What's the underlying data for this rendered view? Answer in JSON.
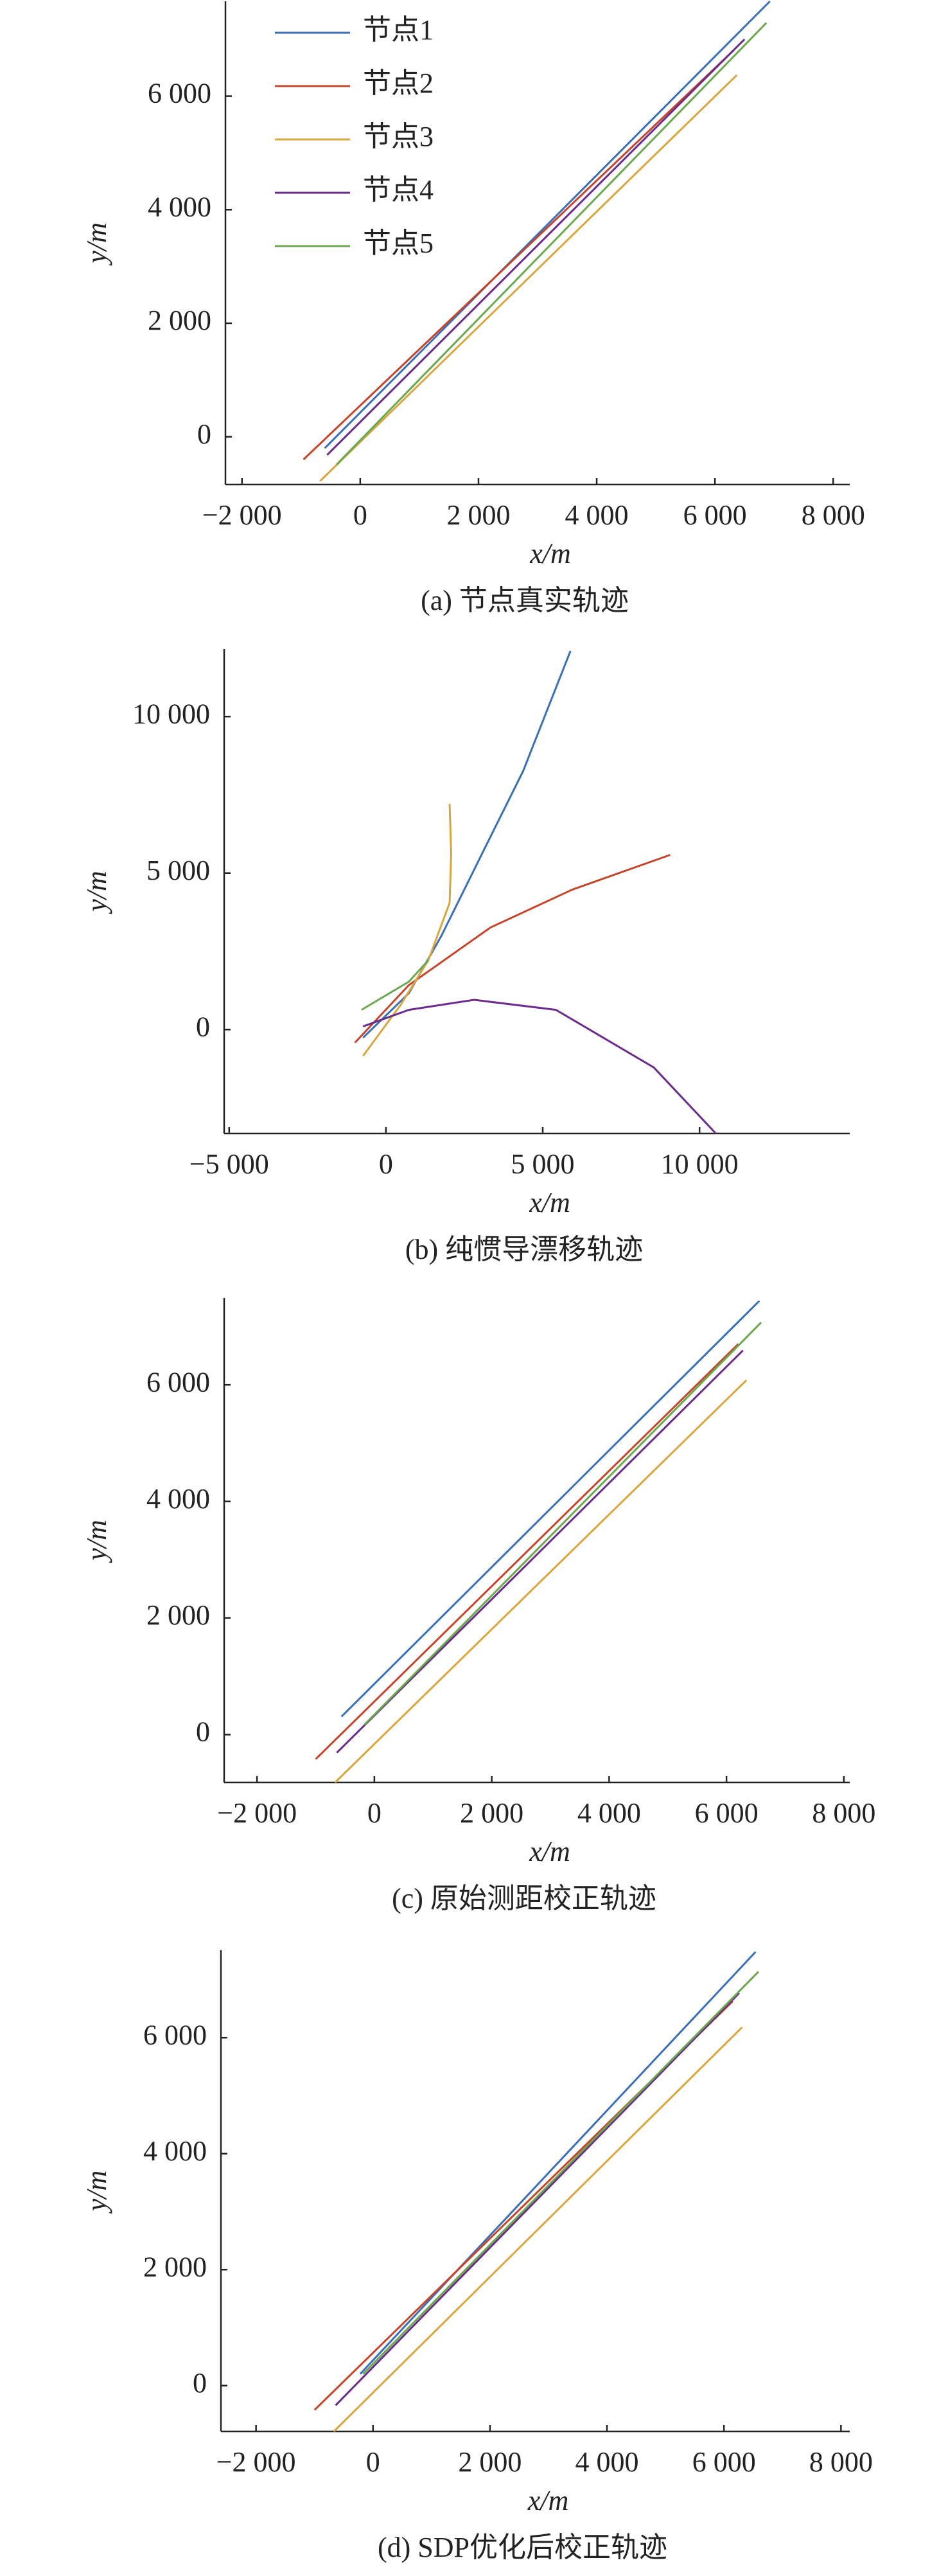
{
  "chart_data": [
    {
      "type": "line",
      "xlabel": "x/m",
      "ylabel": "y/m",
      "caption": "(a) 节点真实轨迹",
      "legend": "upper left",
      "xlim": [
        -2280,
        8280
      ],
      "ylim": [
        -840,
        7670
      ],
      "xticks": [
        {
          "value": -2000,
          "label": "−2 000"
        },
        0,
        {
          "value": 2000,
          "label": "2 000"
        },
        {
          "value": 4000,
          "label": "4 000"
        },
        {
          "value": 6000,
          "label": "6 000"
        },
        {
          "value": 8000,
          "label": "8 000"
        }
      ],
      "yticks": [
        0,
        {
          "value": 2000,
          "label": "2 000"
        },
        {
          "value": 4000,
          "label": "4 000"
        },
        {
          "value": 6000,
          "label": "6 000"
        }
      ],
      "series": [
        {
          "name": "节点1",
          "color": "#3a6fb7",
          "x": [
            -600,
            6930
          ],
          "values": [
            -200,
            7670
          ]
        },
        {
          "name": "节点2",
          "color": "#c4452b",
          "x": [
            -960,
            6310
          ],
          "values": [
            -400,
            6800
          ]
        },
        {
          "name": "节点3",
          "color": "#d9a53f",
          "x": [
            -680,
            6370
          ],
          "values": [
            -780,
            6370
          ]
        },
        {
          "name": "节点4",
          "color": "#6a2c8a",
          "x": [
            -560,
            6500
          ],
          "values": [
            -320,
            7000
          ]
        },
        {
          "name": "节点5",
          "color": "#6aa84f",
          "x": [
            -400,
            6870
          ],
          "values": [
            -490,
            7290
          ]
        }
      ]
    },
    {
      "type": "line",
      "xlabel": "x/m",
      "ylabel": "y/m",
      "caption": "(b) 纯惯导漂移轨迹",
      "xlim": [
        -5160,
        14790
      ],
      "ylim": [
        -3320,
        12160
      ],
      "xticks": [
        {
          "value": -5000,
          "label": "−5 000"
        },
        0,
        {
          "value": 5000,
          "label": "5 000"
        },
        {
          "value": 10000,
          "label": "10 000"
        }
      ],
      "yticks": [
        0,
        {
          "value": 5000,
          "label": "5 000"
        },
        {
          "value": 10000,
          "label": "10 000"
        }
      ],
      "series": [
        {
          "color": "#3a6fb7",
          "x": [
            -730,
            730,
            1770,
            3070,
            4375,
            5885
          ],
          "values": [
            -260,
            1160,
            3000,
            5630,
            8260,
            12100
          ]
        },
        {
          "color": "#c4452b",
          "x": [
            -990,
            730,
            3330,
            5940,
            9060
          ],
          "values": [
            -420,
            1420,
            3260,
            4470,
            5580
          ]
        },
        {
          "color": "#d9a53f",
          "x": [
            -730,
            470,
            1350,
            2030,
            2080,
            2030
          ],
          "values": [
            -840,
            790,
            2210,
            4050,
            5630,
            7210
          ]
        },
        {
          "color": "#6a2c8a",
          "x": [
            -730,
            730,
            2810,
            5420,
            8540,
            10520
          ],
          "values": [
            100,
            630,
            950,
            630,
            -1210,
            -3320
          ]
        },
        {
          "color": "#6aa84f",
          "x": [
            -780,
            730,
            1350
          ],
          "values": [
            630,
            1530,
            2210
          ]
        }
      ]
    },
    {
      "type": "line",
      "xlabel": "x/m",
      "ylabel": "y/m",
      "caption": "(c) 原始测距校正轨迹",
      "xlim": [
        -2560,
        8100
      ],
      "ylim": [
        -820,
        7490
      ],
      "xticks": [
        {
          "value": -2000,
          "label": "−2 000"
        },
        0,
        {
          "value": 2000,
          "label": "2 000"
        },
        {
          "value": 4000,
          "label": "4 000"
        },
        {
          "value": 6000,
          "label": "6 000"
        },
        {
          "value": 8000,
          "label": "8 000"
        }
      ],
      "yticks": [
        0,
        {
          "value": 2000,
          "label": "2 000"
        },
        {
          "value": 4000,
          "label": "4 000"
        },
        {
          "value": 6000,
          "label": "6 000"
        }
      ],
      "series": [
        {
          "color": "#3a6fb7",
          "x": [
            -560,
            6560
          ],
          "values": [
            310,
            7440
          ]
        },
        {
          "color": "#c4452b",
          "x": [
            -1000,
            6200
          ],
          "values": [
            -420,
            6700
          ]
        },
        {
          "color": "#d9a53f",
          "x": [
            -670,
            6340
          ],
          "values": [
            -820,
            6080
          ]
        },
        {
          "color": "#6a2c8a",
          "x": [
            -640,
            6280
          ],
          "values": [
            -310,
            6590
          ]
        },
        {
          "color": "#6aa84f",
          "x": [
            -170,
            6590
          ],
          "values": [
            170,
            7070
          ]
        }
      ]
    },
    {
      "type": "line",
      "xlabel": "x/m",
      "ylabel": "y/m",
      "caption": "(d) SDP优化后校正轨迹",
      "xlim": [
        -2600,
        8150
      ],
      "ylim": [
        -790,
        7510
      ],
      "xticks": [
        {
          "value": -2000,
          "label": "−2 000"
        },
        0,
        {
          "value": 2000,
          "label": "2 000"
        },
        {
          "value": 4000,
          "label": "4 000"
        },
        {
          "value": 6000,
          "label": "6 000"
        },
        {
          "value": 8000,
          "label": "8 000"
        }
      ],
      "yticks": [
        0,
        {
          "value": 2000,
          "label": "2 000"
        },
        {
          "value": 4000,
          "label": "4 000"
        },
        {
          "value": 6000,
          "label": "6 000"
        }
      ],
      "series": [
        {
          "color": "#3a6fb7",
          "x": [
            -220,
            6540
          ],
          "values": [
            200,
            7480
          ]
        },
        {
          "color": "#c4452b",
          "x": [
            -1000,
            6150
          ],
          "values": [
            -420,
            6630
          ]
        },
        {
          "color": "#d9a53f",
          "x": [
            -670,
            6310
          ],
          "values": [
            -790,
            6180
          ]
        },
        {
          "color": "#6a2c8a",
          "x": [
            -640,
            6260
          ],
          "values": [
            -340,
            6770
          ]
        },
        {
          "color": "#6aa84f",
          "x": [
            -170,
            6590
          ],
          "values": [
            200,
            7140
          ]
        }
      ]
    }
  ]
}
